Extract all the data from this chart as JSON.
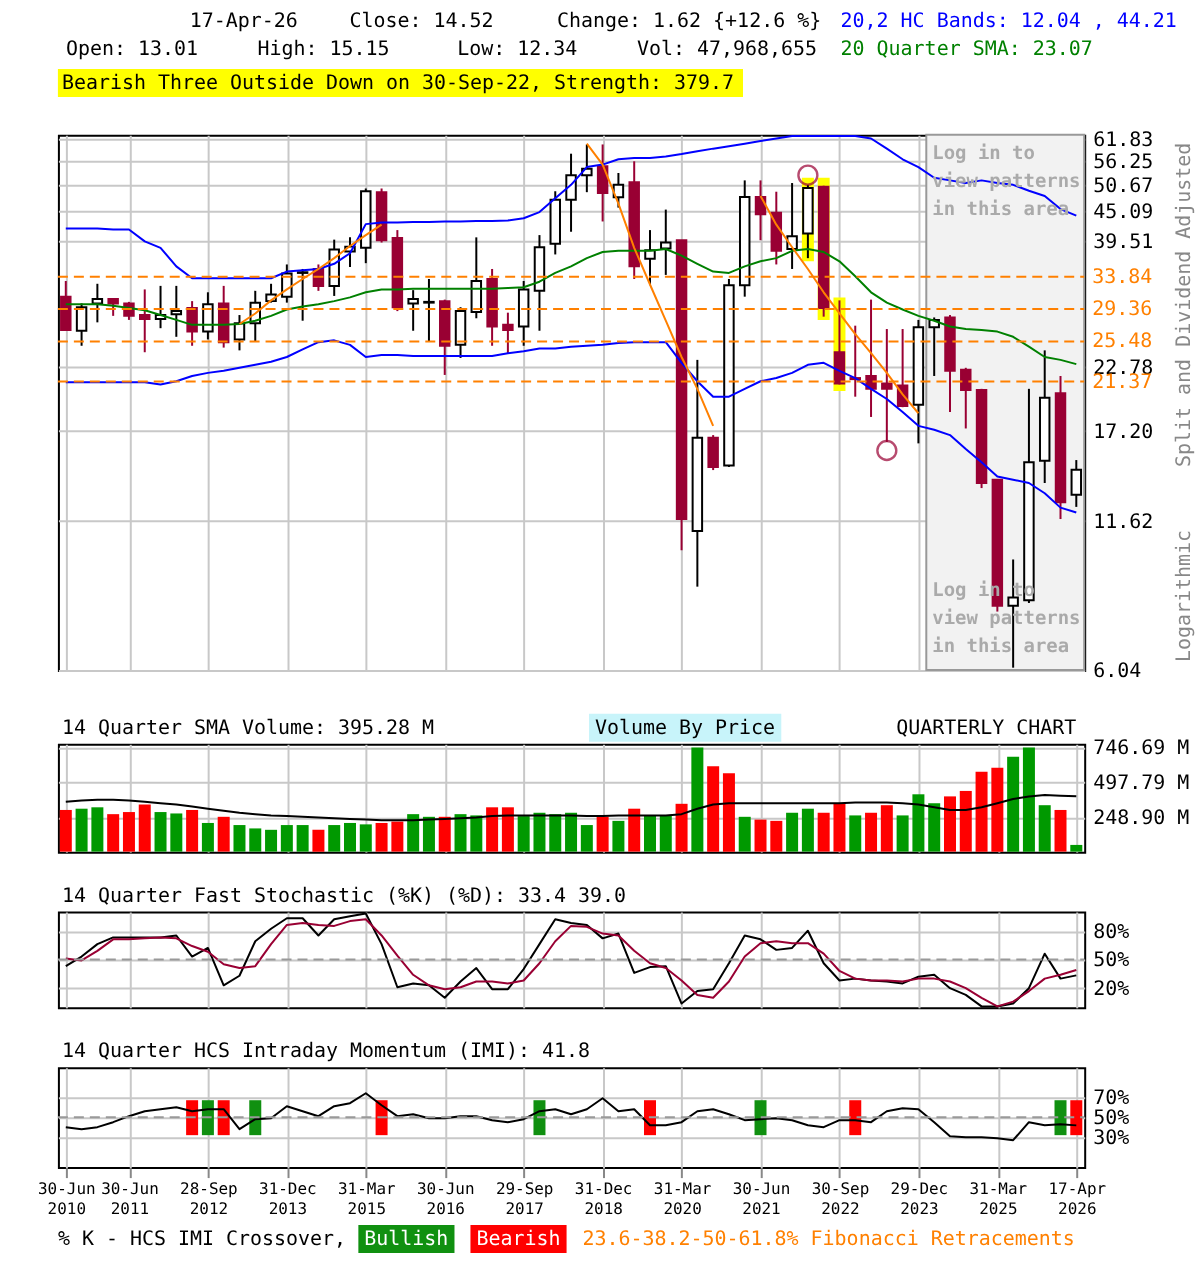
{
  "chart_data": [
    {
      "type": "candlestick",
      "ylabel": "Split and Dividend Adjusted",
      "annotations": [
        "17-Apr-26",
        "Close: 14.52",
        "Change: 1.62 {+12.6 %}",
        "Open: 13.01",
        "High: 15.15",
        "Low: 12.34",
        "Vol: 47,968,655",
        "Bearish Three Outside Down on 30-Sep-22, Strength: 379.7",
        "Log in to view patterns in this area",
        "Logarithmic"
      ],
      "categories": [
        "30-Jun 2010",
        null,
        null,
        null,
        "30-Jun 2011",
        null,
        null,
        null,
        null,
        "28-Sep 2012",
        null,
        null,
        null,
        null,
        "31-Dec 2013",
        null,
        null,
        null,
        null,
        "31-Mar 2015",
        null,
        null,
        null,
        null,
        "30-Jun 2016",
        null,
        null,
        null,
        null,
        "29-Sep 2017",
        null,
        null,
        null,
        null,
        "31-Dec 2018",
        null,
        null,
        null,
        null,
        "31-Mar 2020",
        null,
        null,
        null,
        null,
        "30-Jun 2021",
        null,
        null,
        null,
        null,
        "30-Sep 2022",
        null,
        null,
        null,
        null,
        "29-Dec 2023",
        null,
        null,
        null,
        null,
        "31-Mar 2025",
        null,
        null,
        null,
        null,
        "17-Apr 2026"
      ],
      "ohlc": [
        [
          31.0,
          33.2,
          26.7,
          26.8
        ],
        [
          26.7,
          30.1,
          25.0,
          29.6
        ],
        [
          30.1,
          32.8,
          27.7,
          30.7
        ],
        [
          30.7,
          30.7,
          28.5,
          30.1
        ],
        [
          30.1,
          30.3,
          28.0,
          28.5
        ],
        [
          28.6,
          32.0,
          24.3,
          28.1
        ],
        [
          28.1,
          32.5,
          27.0,
          28.6
        ],
        [
          28.7,
          32.5,
          26.0,
          29.1
        ],
        [
          29.5,
          30.4,
          25.0,
          26.6
        ],
        [
          26.6,
          31.6,
          25.7,
          30.0
        ],
        [
          30.1,
          32.5,
          24.8,
          25.4
        ],
        [
          25.7,
          28.6,
          24.5,
          27.6
        ],
        [
          27.6,
          31.8,
          25.5,
          30.2
        ],
        [
          30.4,
          32.8,
          30.2,
          31.3
        ],
        [
          31.0,
          35.7,
          30.2,
          34.3
        ],
        [
          34.4,
          35.0,
          27.9,
          34.5
        ],
        [
          35.0,
          35.7,
          31.8,
          32.5
        ],
        [
          32.5,
          39.8,
          31.1,
          38.1
        ],
        [
          37.8,
          40.2,
          35.3,
          38.6
        ],
        [
          38.4,
          49.8,
          35.9,
          49.2
        ],
        [
          49.0,
          49.8,
          39.3,
          39.7
        ],
        [
          40.1,
          41.5,
          29.1,
          29.6
        ],
        [
          30.1,
          31.9,
          26.7,
          30.7
        ],
        [
          30.2,
          33.5,
          25.5,
          30.3
        ],
        [
          30.4,
          30.6,
          22.0,
          25.0
        ],
        [
          25.1,
          29.6,
          23.7,
          29.1
        ],
        [
          29.0,
          40.2,
          28.2,
          33.2
        ],
        [
          33.5,
          35.0,
          25.0,
          27.2
        ],
        [
          27.4,
          28.9,
          24.2,
          26.8
        ],
        [
          27.2,
          33.2,
          25.0,
          32.0
        ],
        [
          31.8,
          40.6,
          26.7,
          38.5
        ],
        [
          39.1,
          49.2,
          37.3,
          47.4
        ],
        [
          47.4,
          58.0,
          41.2,
          52.8
        ],
        [
          52.8,
          60.4,
          49.0,
          54.3
        ],
        [
          54.9,
          60.4,
          43.1,
          48.8
        ],
        [
          47.9,
          53.3,
          45.8,
          50.6
        ],
        [
          51.2,
          56.1,
          33.5,
          35.4
        ],
        [
          36.6,
          41.5,
          32.6,
          38.0
        ],
        [
          38.3,
          45.4,
          34.1,
          39.3
        ],
        [
          39.7,
          39.7,
          10.2,
          11.7
        ],
        [
          11.1,
          23.5,
          8.7,
          16.7
        ],
        [
          16.7,
          16.9,
          14.5,
          14.7
        ],
        [
          14.8,
          33.5,
          14.7,
          32.6
        ],
        [
          32.6,
          51.6,
          31.0,
          48.0
        ],
        [
          48.0,
          51.6,
          39.7,
          44.5
        ],
        [
          44.8,
          49.1,
          35.7,
          37.9
        ],
        [
          38.2,
          51.0,
          35.0,
          40.4
        ],
        [
          40.9,
          50.6,
          36.7,
          49.9
        ],
        [
          50.2,
          50.4,
          28.4,
          29.5
        ],
        [
          24.3,
          30.5,
          21.1,
          21.2
        ],
        [
          21.7,
          27.3,
          20.0,
          21.6
        ],
        [
          21.9,
          30.6,
          18.3,
          20.7
        ],
        [
          21.2,
          26.9,
          16.4,
          20.7
        ],
        [
          21.0,
          26.9,
          19.1,
          19.2
        ],
        [
          19.3,
          28.0,
          16.3,
          27.1
        ],
        [
          27.1,
          28.3,
          21.9,
          28.0
        ],
        [
          28.3,
          28.6,
          18.7,
          22.4
        ],
        [
          22.5,
          22.7,
          17.4,
          20.6
        ],
        [
          20.6,
          20.7,
          13.4,
          13.7
        ],
        [
          13.9,
          13.9,
          7.8,
          8.0
        ],
        [
          8.0,
          9.8,
          6.1,
          8.3
        ],
        [
          8.2,
          20.7,
          8.1,
          15.0
        ],
        [
          15.1,
          24.5,
          13.7,
          19.9
        ],
        [
          20.3,
          21.9,
          11.7,
          12.6
        ],
        [
          13.01,
          15.15,
          12.34,
          14.52
        ]
      ],
      "series": [
        {
          "type": "bar",
          "color": "#ffff00",
          "base": [
            null,
            null,
            null,
            null,
            null,
            null,
            null,
            null,
            null,
            null,
            null,
            null,
            null,
            null,
            null,
            null,
            null,
            null,
            null,
            null,
            null,
            null,
            null,
            null,
            null,
            null,
            null,
            null,
            null,
            null,
            null,
            null,
            null,
            null,
            null,
            null,
            null,
            null,
            null,
            null,
            null,
            null,
            null,
            null,
            null,
            null,
            null,
            36.2,
            28.0,
            20.5,
            null,
            null,
            null,
            null,
            null,
            null,
            null,
            null,
            null,
            null,
            null,
            null,
            null,
            null,
            null
          ],
          "values": [
            null,
            null,
            null,
            null,
            null,
            null,
            null,
            null,
            null,
            null,
            null,
            null,
            null,
            null,
            null,
            null,
            null,
            null,
            null,
            null,
            null,
            null,
            null,
            null,
            null,
            null,
            null,
            null,
            null,
            null,
            null,
            null,
            null,
            null,
            null,
            null,
            null,
            null,
            null,
            null,
            null,
            null,
            null,
            null,
            null,
            null,
            null,
            16.0,
            24.2,
            10.4,
            null,
            null,
            null,
            null,
            null,
            null,
            null,
            null,
            null,
            null,
            null,
            null,
            null,
            null,
            null
          ]
        },
        {
          "type": "line",
          "name": "20,2 HC Bands: 12.04 , 44.21",
          "color": "#0000ff",
          "values": [
            41.8,
            41.8,
            41.8,
            41.6,
            41.6,
            39.5,
            38.4,
            35.4,
            33.6,
            33.6,
            33.6,
            33.6,
            33.6,
            33.6,
            34.6,
            34.8,
            35.0,
            35.8,
            37.5,
            42.6,
            42.9,
            42.9,
            43.0,
            43.0,
            43.1,
            43.1,
            43.2,
            43.2,
            43.3,
            43.7,
            44.9,
            47.7,
            50.6,
            54.7,
            55.3,
            56.6,
            56.9,
            56.9,
            57.3,
            57.9,
            58.6,
            59.3,
            59.9,
            60.6,
            61.3,
            62.0,
            62.7,
            62.7,
            62.7,
            62.7,
            62.7,
            62.0,
            59.3,
            56.6,
            54.7,
            52.2,
            51.6,
            51.0,
            51.6,
            51.0,
            50.6,
            49.3,
            48.2,
            45.5,
            44.21
          ]
        },
        {
          "type": "line",
          "color": "#0000ff",
          "values": [
            21.3,
            21.3,
            21.3,
            21.3,
            21.3,
            21.3,
            21.1,
            21.4,
            21.9,
            22.2,
            22.4,
            22.7,
            23.0,
            23.3,
            23.8,
            24.6,
            25.4,
            25.6,
            25.1,
            23.8,
            24.0,
            24.0,
            23.9,
            23.9,
            23.9,
            23.9,
            23.9,
            23.9,
            24.2,
            24.4,
            24.7,
            24.7,
            24.9,
            25.0,
            25.1,
            25.3,
            25.4,
            25.4,
            25.4,
            23.2,
            21.4,
            20.0,
            20.0,
            20.7,
            21.4,
            21.7,
            22.2,
            23.0,
            23.2,
            22.4,
            21.7,
            20.7,
            19.8,
            18.7,
            17.6,
            17.3,
            16.9,
            15.9,
            15.0,
            14.1,
            13.9,
            13.7,
            13.1,
            12.3,
            12.04
          ]
        },
        {
          "type": "line",
          "name": "20 Quarter SMA: 23.07",
          "color": "#008000",
          "values": [
            30.0,
            30.0,
            30.0,
            29.8,
            29.5,
            29.2,
            28.6,
            28.0,
            27.4,
            27.4,
            27.4,
            27.5,
            27.9,
            28.5,
            29.3,
            29.7,
            30.0,
            30.4,
            30.9,
            31.6,
            32.0,
            32.0,
            32.1,
            32.1,
            32.1,
            32.1,
            32.1,
            32.1,
            32.2,
            32.3,
            33.1,
            34.4,
            35.4,
            36.7,
            37.7,
            37.9,
            37.9,
            37.9,
            38.2,
            37.1,
            35.8,
            34.6,
            34.4,
            35.4,
            36.2,
            36.7,
            37.9,
            38.2,
            37.7,
            36.2,
            33.9,
            31.6,
            30.2,
            29.3,
            28.5,
            27.9,
            27.2,
            26.9,
            26.8,
            26.6,
            26.0,
            24.9,
            23.8,
            23.5,
            23.07
          ]
        },
        {
          "type": "line",
          "color": "#ff8000",
          "values": [
            null,
            null,
            null,
            null,
            null,
            null,
            null,
            null,
            null,
            null,
            null,
            27.5,
            28.8,
            30.5,
            32.0,
            33.5,
            35.0,
            36.7,
            38.7,
            40.6,
            42.5,
            null,
            null,
            null,
            null,
            null,
            null,
            null,
            null,
            null,
            null,
            null,
            null,
            null,
            null,
            null,
            null,
            null,
            null,
            null,
            null,
            null,
            null,
            null,
            null,
            null,
            null,
            null,
            null,
            null,
            null,
            null,
            null,
            null,
            null,
            null,
            null,
            null,
            null,
            null,
            null,
            null,
            null,
            null,
            null
          ]
        },
        {
          "type": "line",
          "color": "#ff8000",
          "values": [
            null,
            null,
            null,
            null,
            null,
            null,
            null,
            null,
            null,
            null,
            null,
            null,
            null,
            null,
            null,
            null,
            null,
            null,
            null,
            null,
            null,
            null,
            null,
            null,
            null,
            null,
            null,
            null,
            null,
            null,
            null,
            null,
            null,
            60.6,
            55.3,
            46.6,
            38.4,
            32.7,
            27.9,
            23.8,
            20.7,
            17.6,
            null,
            null,
            null,
            null,
            null,
            null,
            null,
            null,
            null,
            null,
            null,
            null,
            null,
            null,
            null,
            null,
            null,
            null,
            null,
            null,
            null,
            null,
            null
          ]
        },
        {
          "type": "line",
          "color": "#ff8000",
          "values": [
            null,
            null,
            null,
            null,
            null,
            null,
            null,
            null,
            null,
            null,
            null,
            null,
            null,
            null,
            null,
            null,
            null,
            null,
            null,
            null,
            null,
            null,
            null,
            null,
            null,
            null,
            null,
            null,
            null,
            null,
            null,
            null,
            null,
            null,
            null,
            null,
            null,
            null,
            null,
            null,
            null,
            null,
            null,
            null,
            48.2,
            42.5,
            38.5,
            35.0,
            31.6,
            28.8,
            26.3,
            24.2,
            22.2,
            20.2,
            18.6,
            null,
            null,
            null,
            null,
            null,
            null,
            null,
            null,
            null,
            null
          ]
        },
        {
          "type": "scatter",
          "marker": "circle",
          "color": "#990033",
          "values": [
            null,
            null,
            null,
            null,
            null,
            null,
            null,
            null,
            null,
            null,
            null,
            null,
            null,
            null,
            null,
            null,
            null,
            null,
            null,
            null,
            null,
            null,
            null,
            null,
            null,
            null,
            null,
            null,
            null,
            null,
            null,
            null,
            null,
            null,
            null,
            null,
            null,
            null,
            null,
            null,
            null,
            null,
            null,
            null,
            null,
            null,
            null,
            52.8,
            null,
            null,
            null,
            null,
            15.8,
            null,
            null,
            null,
            null,
            null,
            null,
            null,
            null,
            null,
            null,
            null,
            null
          ]
        }
      ],
      "ylim": [
        6.04,
        63.0
      ],
      "log": "y",
      "yticks": [
        61.83,
        56.25,
        50.67,
        45.09,
        39.51,
        22.78,
        {
          "value": 17.2,
          "label": "17.20"
        },
        11.62,
        6.04
      ],
      "ref_lines": [
        {
          "axis": "y",
          "value": 33.84,
          "label": "33.84",
          "color": "#ff8000",
          "line_style": "dashed"
        },
        {
          "axis": "y",
          "value": 29.36,
          "label": "29.36",
          "color": "#ff8000",
          "line_style": "dashed"
        },
        {
          "axis": "y",
          "value": 25.48,
          "label": "25.48",
          "color": "#ff8000",
          "line_style": "dashed"
        },
        {
          "axis": "y",
          "value": 21.37,
          "label": "21.37",
          "color": "#ff8000",
          "line_style": "dashed"
        }
      ],
      "bands": [
        {
          "axis": "x",
          "from": "29-Dec 2023",
          "to": "17-Apr 2026",
          "label": "Log in to view patterns in this area",
          "color": "#f2f2f2"
        }
      ],
      "grid": true,
      "legend": "top right",
      "tick_labels": "y"
    },
    {
      "type": "bar",
      "title": "14 Quarter SMA Volume: 395.28 M",
      "annotations": [
        "QUARTERLY CHART",
        "Volume By Price"
      ],
      "categories": [
        "30-Jun 2010",
        null,
        null,
        null,
        "30-Jun 2011",
        null,
        null,
        null,
        null,
        "28-Sep 2012",
        null,
        null,
        null,
        null,
        "31-Dec 2013",
        null,
        null,
        null,
        null,
        "31-Mar 2015",
        null,
        null,
        null,
        null,
        "30-Jun 2016",
        null,
        null,
        null,
        null,
        "29-Sep 2017",
        null,
        null,
        null,
        null,
        "31-Dec 2018",
        null,
        null,
        null,
        null,
        "31-Mar 2020",
        null,
        null,
        null,
        null,
        "30-Jun 2021",
        null,
        null,
        null,
        null,
        "30-Sep 2022",
        null,
        null,
        null,
        null,
        "29-Dec 2023",
        null,
        null,
        null,
        null,
        "31-Mar 2025",
        null,
        null,
        null,
        null,
        "17-Apr 2026"
      ],
      "series": [
        {
          "type": "bar",
          "colors": [
            "#ff0000",
            "#009900",
            "#009900",
            "#ff0000",
            "#ff0000",
            "#ff0000",
            "#009900",
            "#009900",
            "#ff0000",
            "#009900",
            "#ff0000",
            "#009900",
            "#009900",
            "#009900",
            "#009900",
            "#009900",
            "#ff0000",
            "#009900",
            "#009900",
            "#009900",
            "#ff0000",
            "#ff0000",
            "#009900",
            "#009900",
            "#ff0000",
            "#009900",
            "#009900",
            "#ff0000",
            "#ff0000",
            "#009900",
            "#009900",
            "#009900",
            "#009900",
            "#009900",
            "#ff0000",
            "#009900",
            "#ff0000",
            "#009900",
            "#009900",
            "#ff0000",
            "#009900",
            "#ff0000",
            "#ff0000",
            "#009900",
            "#ff0000",
            "#ff0000",
            "#009900",
            "#009900",
            "#ff0000",
            "#ff0000",
            "#009900",
            "#ff0000",
            "#ff0000",
            "#009900",
            "#009900",
            "#009900",
            "#ff0000",
            "#ff0000",
            "#ff0000",
            "#ff0000",
            "#009900",
            "#009900",
            "#009900",
            "#ff0000",
            "#009900"
          ],
          "values": [
            298,
            307,
            317,
            268,
            283,
            337,
            283,
            273,
            298,
            205,
            249,
            190,
            166,
            156,
            190,
            190,
            156,
            190,
            205,
            195,
            205,
            215,
            268,
            249,
            249,
            268,
            259,
            317,
            317,
            254,
            278,
            268,
            278,
            190,
            249,
            220,
            307,
            259,
            259,
            342,
            745,
            610,
            561,
            249,
            229,
            220,
            278,
            307,
            278,
            346,
            259,
            278,
            332,
            259,
            410,
            346,
            395,
            434,
            571,
            600,
            678,
            745,
            332,
            298,
            47.97
          ]
        },
        {
          "type": "line",
          "color": "#000000",
          "values": [
            356,
            366,
            371,
            371,
            366,
            356,
            346,
            337,
            322,
            307,
            293,
            278,
            268,
            259,
            254,
            249,
            244,
            239,
            234,
            229,
            224,
            224,
            224,
            229,
            234,
            239,
            244,
            254,
            259,
            259,
            259,
            259,
            259,
            254,
            254,
            259,
            259,
            259,
            259,
            268,
            307,
            337,
            346,
            346,
            346,
            346,
            346,
            346,
            346,
            346,
            351,
            351,
            351,
            346,
            337,
            317,
            298,
            298,
            317,
            346,
            376,
            395,
            405,
            400,
            395.28
          ]
        }
      ],
      "ylim": [
        0,
        771
      ],
      "yticks": [
        {
          "value": 248.9,
          "label": "248.90 M"
        },
        {
          "value": 497.79,
          "label": "497.79 M"
        },
        {
          "value": 746.69,
          "label": "746.69 M"
        }
      ],
      "grid": true,
      "tick_labels": "y"
    },
    {
      "type": "line",
      "title": "14 Quarter Fast Stochastic (%K) (%D): 33.4 39.0",
      "categories": [
        "30-Jun 2010",
        null,
        null,
        null,
        "30-Jun 2011",
        null,
        null,
        null,
        null,
        "28-Sep 2012",
        null,
        null,
        null,
        null,
        "31-Dec 2013",
        null,
        null,
        null,
        null,
        "31-Mar 2015",
        null,
        null,
        null,
        null,
        "30-Jun 2016",
        null,
        null,
        null,
        null,
        "29-Sep 2017",
        null,
        null,
        null,
        null,
        "31-Dec 2018",
        null,
        null,
        null,
        null,
        "31-Mar 2020",
        null,
        null,
        null,
        null,
        "30-Jun 2021",
        null,
        null,
        null,
        null,
        "30-Sep 2022",
        null,
        null,
        null,
        null,
        "29-Dec 2023",
        null,
        null,
        null,
        null,
        "31-Mar 2025",
        null,
        null,
        null,
        null,
        "17-Apr 2026"
      ],
      "series": [
        {
          "color": "#000000",
          "values": [
            43,
            53,
            66,
            73,
            73,
            73,
            73,
            75,
            53,
            62,
            23,
            33,
            69,
            82,
            93,
            93,
            75,
            92,
            95,
            98,
            66,
            21,
            25,
            23,
            10,
            27,
            41,
            19,
            19,
            40,
            66,
            92,
            88,
            86,
            72,
            77,
            36,
            42,
            43,
            4,
            17,
            19,
            46,
            75,
            71,
            60,
            62,
            80,
            46,
            28,
            30,
            28,
            27,
            25,
            32,
            34,
            20,
            13,
            1,
            1,
            4,
            20,
            56,
            30,
            33.4
          ]
        },
        {
          "color": "#990033",
          "values": [
            51,
            49,
            59,
            71,
            71,
            72,
            73,
            72,
            64,
            58,
            45,
            41,
            43,
            66,
            86,
            88,
            86,
            85,
            90,
            92,
            75,
            54,
            34,
            23,
            19,
            21,
            27,
            27,
            25,
            28,
            46,
            69,
            85,
            84,
            77,
            75,
            59,
            46,
            41,
            28,
            13,
            10,
            27,
            53,
            67,
            69,
            67,
            67,
            56,
            38,
            30,
            28,
            28,
            27,
            30,
            30,
            27,
            20,
            10,
            1,
            6,
            17,
            30,
            34,
            39.0
          ]
        }
      ],
      "ylim": [
        0,
        100
      ],
      "yticks": [
        {
          "value": 20,
          "label": "20%"
        },
        {
          "value": 50,
          "label": "50%"
        },
        {
          "value": 80,
          "label": "80%"
        }
      ],
      "ref_lines": [
        {
          "axis": "y",
          "value": 50,
          "color": "#999999",
          "line_style": "dashed"
        }
      ],
      "grid": true,
      "tick_labels": "y"
    },
    {
      "type": "line",
      "title": "14 Quarter HCS Intraday Momentum (IMI): 41.8",
      "legend": "bottom",
      "legend_title": "% K - HCS IMI Crossover,",
      "annotations": [
        "23.6-38.2-50-61.8% Fibonacci Retracements"
      ],
      "categories": [
        "30-Jun 2010",
        null,
        null,
        null,
        "30-Jun 2011",
        null,
        null,
        null,
        null,
        "28-Sep 2012",
        null,
        null,
        null,
        null,
        "31-Dec 2013",
        null,
        null,
        null,
        null,
        "31-Mar 2015",
        null,
        null,
        null,
        null,
        "30-Jun 2016",
        null,
        null,
        null,
        null,
        "29-Sep 2017",
        null,
        null,
        null,
        null,
        "31-Dec 2018",
        null,
        null,
        null,
        null,
        "31-Mar 2020",
        null,
        null,
        null,
        null,
        "30-Jun 2021",
        null,
        null,
        null,
        null,
        "30-Sep 2022",
        null,
        null,
        null,
        null,
        "29-Dec 2023",
        null,
        null,
        null,
        null,
        "31-Mar 2025",
        null,
        null,
        null,
        null,
        "17-Apr 2026"
      ],
      "series": [
        {
          "type": "bar",
          "name": "Bullish",
          "color": "#109010",
          "base": [
            null,
            null,
            null,
            null,
            null,
            null,
            null,
            null,
            null,
            32,
            null,
            null,
            32,
            null,
            null,
            null,
            null,
            null,
            null,
            null,
            null,
            null,
            null,
            null,
            null,
            null,
            null,
            null,
            null,
            null,
            32,
            null,
            null,
            null,
            null,
            null,
            null,
            null,
            null,
            null,
            null,
            null,
            null,
            null,
            32,
            null,
            null,
            null,
            null,
            null,
            null,
            null,
            null,
            null,
            null,
            null,
            null,
            null,
            null,
            null,
            null,
            null,
            null,
            32,
            null
          ],
          "values": [
            null,
            null,
            null,
            null,
            null,
            null,
            null,
            null,
            null,
            35,
            null,
            null,
            35,
            null,
            null,
            null,
            null,
            null,
            null,
            null,
            null,
            null,
            null,
            null,
            null,
            null,
            null,
            null,
            null,
            null,
            35,
            null,
            null,
            null,
            null,
            null,
            null,
            null,
            null,
            null,
            null,
            null,
            null,
            null,
            35,
            null,
            null,
            null,
            null,
            null,
            null,
            null,
            null,
            null,
            null,
            null,
            null,
            null,
            null,
            null,
            null,
            null,
            null,
            35,
            null
          ]
        },
        {
          "type": "bar",
          "name": "Bearish",
          "color": "#ff0000",
          "base": [
            null,
            null,
            null,
            null,
            null,
            null,
            null,
            null,
            32,
            null,
            32,
            null,
            null,
            null,
            null,
            null,
            null,
            null,
            null,
            null,
            32,
            null,
            null,
            null,
            null,
            null,
            null,
            null,
            null,
            null,
            null,
            null,
            null,
            null,
            null,
            null,
            null,
            32,
            null,
            null,
            null,
            null,
            null,
            null,
            null,
            null,
            null,
            null,
            null,
            null,
            32,
            null,
            null,
            null,
            null,
            null,
            null,
            null,
            null,
            null,
            null,
            null,
            null,
            null,
            32
          ],
          "values": [
            null,
            null,
            null,
            null,
            null,
            null,
            null,
            null,
            35,
            null,
            35,
            null,
            null,
            null,
            null,
            null,
            null,
            null,
            null,
            null,
            35,
            null,
            null,
            null,
            null,
            null,
            null,
            null,
            null,
            null,
            null,
            null,
            null,
            null,
            null,
            null,
            null,
            35,
            null,
            null,
            null,
            null,
            null,
            null,
            null,
            null,
            null,
            null,
            null,
            null,
            35,
            null,
            null,
            null,
            null,
            null,
            null,
            null,
            null,
            null,
            null,
            null,
            null,
            null,
            35
          ]
        },
        {
          "type": "line",
          "color": "#000000",
          "values": [
            40,
            38,
            40,
            45,
            51,
            56,
            58,
            60,
            56,
            58,
            58,
            38,
            48,
            49,
            61,
            56,
            51,
            61,
            64,
            74,
            62,
            51,
            53,
            49,
            49,
            51,
            51,
            47,
            45,
            48,
            56,
            58,
            53,
            58,
            69,
            56,
            58,
            42,
            42,
            45,
            56,
            58,
            53,
            47,
            48,
            49,
            47,
            42,
            40,
            47,
            47,
            45,
            56,
            59,
            58,
            45,
            31,
            30,
            30,
            29,
            27,
            45,
            42,
            43,
            41.8
          ]
        }
      ],
      "ylim": [
        0,
        100
      ],
      "yticks": [
        {
          "value": 30,
          "label": "30%"
        },
        {
          "value": 50,
          "label": "50%"
        },
        {
          "value": 70,
          "label": "70%"
        }
      ],
      "ref_lines": [
        {
          "axis": "y",
          "value": 50,
          "color": "#999999",
          "line_style": "dashed"
        }
      ],
      "grid": true
    }
  ]
}
